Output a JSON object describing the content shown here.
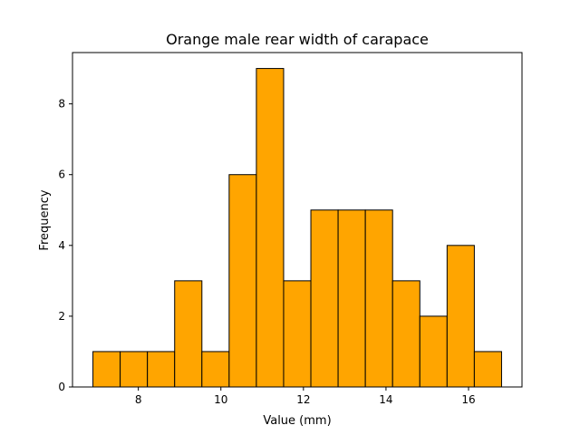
{
  "chart_data": {
    "type": "bar",
    "title": "Orange male rear width of carapace",
    "xlabel": "Value (mm)",
    "ylabel": "Frequency",
    "bin_edges": [
      6.9,
      7.56,
      8.22,
      8.88,
      9.54,
      10.2,
      10.86,
      11.52,
      12.18,
      12.84,
      13.5,
      14.16,
      14.82,
      15.48,
      16.14,
      16.8
    ],
    "values": [
      1,
      1,
      1,
      3,
      1,
      6,
      9,
      3,
      5,
      5,
      5,
      3,
      2,
      4,
      1
    ],
    "xlim": [
      6.405,
      17.295
    ],
    "ylim": [
      0,
      9.45
    ],
    "xticks": [
      8,
      10,
      12,
      14,
      16
    ],
    "yticks": [
      0,
      2,
      4,
      6,
      8
    ],
    "bar_color": "#FFA500",
    "edge_color": "#000000",
    "grid": false,
    "legend": "none"
  }
}
